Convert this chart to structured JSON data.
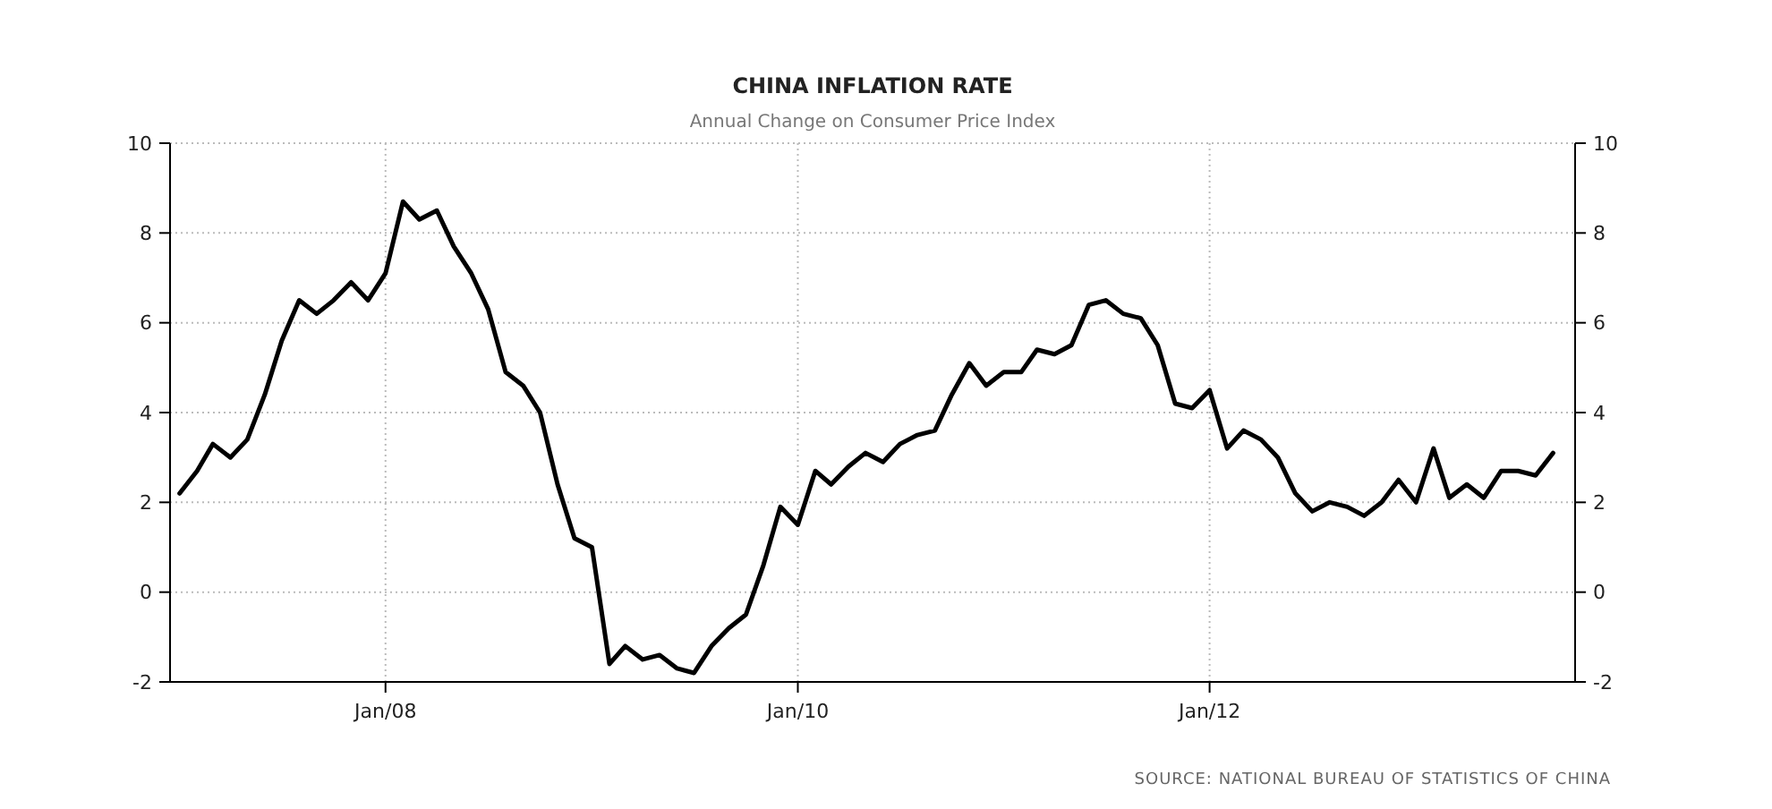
{
  "chart_data": {
    "type": "line",
    "title": "CHINA INFLATION RATE",
    "subtitle": "Annual Change on Consumer Price Index",
    "annotations": [
      "SOURCE: NATIONAL BUREAU OF STATISTICS OF CHINA"
    ],
    "x": [
      "2007-01",
      "2007-02",
      "2007-03",
      "2007-04",
      "2007-05",
      "2007-06",
      "2007-07",
      "2007-08",
      "2007-09",
      "2007-10",
      "2007-11",
      "2007-12",
      "2008-01",
      "2008-02",
      "2008-03",
      "2008-04",
      "2008-05",
      "2008-06",
      "2008-07",
      "2008-08",
      "2008-09",
      "2008-10",
      "2008-11",
      "2008-12",
      "2009-01",
      "2009-02",
      "2009-03",
      "2009-04",
      "2009-05",
      "2009-06",
      "2009-07",
      "2009-08",
      "2009-09",
      "2009-10",
      "2009-11",
      "2009-12",
      "2010-01",
      "2010-02",
      "2010-03",
      "2010-04",
      "2010-05",
      "2010-06",
      "2010-07",
      "2010-08",
      "2010-09",
      "2010-10",
      "2010-11",
      "2010-12",
      "2011-01",
      "2011-02",
      "2011-03",
      "2011-04",
      "2011-05",
      "2011-06",
      "2011-07",
      "2011-08",
      "2011-09",
      "2011-10",
      "2011-11",
      "2011-12",
      "2012-01",
      "2012-02",
      "2012-03",
      "2012-04",
      "2012-05",
      "2012-06",
      "2012-07",
      "2012-08",
      "2012-09",
      "2012-10",
      "2012-11",
      "2012-12",
      "2013-01",
      "2013-02",
      "2013-03",
      "2013-04",
      "2013-05",
      "2013-06",
      "2013-07",
      "2013-08",
      "2013-09"
    ],
    "series": [
      {
        "color": "#000000",
        "values": [
          2.2,
          2.7,
          3.3,
          3.0,
          3.4,
          4.4,
          5.6,
          6.5,
          6.2,
          6.5,
          6.9,
          6.5,
          7.1,
          8.7,
          8.3,
          8.5,
          7.7,
          7.1,
          6.3,
          4.9,
          4.6,
          4.0,
          2.4,
          1.2,
          1.0,
          -1.6,
          -1.2,
          -1.5,
          -1.4,
          -1.7,
          -1.8,
          -1.2,
          -0.8,
          -0.5,
          0.6,
          1.9,
          1.5,
          2.7,
          2.4,
          2.8,
          3.1,
          2.9,
          3.3,
          3.5,
          3.6,
          4.4,
          5.1,
          4.6,
          4.9,
          4.9,
          5.4,
          5.3,
          5.5,
          6.4,
          6.5,
          6.2,
          6.1,
          5.5,
          4.2,
          4.1,
          4.5,
          3.2,
          3.6,
          3.4,
          3.0,
          2.2,
          1.8,
          2.0,
          1.9,
          1.7,
          2.0,
          2.5,
          2.0,
          3.2,
          2.1,
          2.4,
          2.1,
          2.7,
          2.7,
          2.6,
          3.1
        ]
      }
    ],
    "xlim": [
      "2006-12-15",
      "2013-10-10"
    ],
    "xticks": [
      {
        "value": "2008-01",
        "label": "Jan/08"
      },
      {
        "value": "2010-01",
        "label": "Jan/10"
      },
      {
        "value": "2012-01",
        "label": "Jan/12"
      }
    ],
    "ylim": [
      -2,
      10
    ],
    "yticks": [
      -2,
      0,
      2,
      4,
      6,
      8,
      10
    ],
    "y2lim": [
      -2,
      10
    ],
    "y2ticks": [
      -2,
      0,
      2,
      4,
      6,
      8,
      10
    ],
    "grid": true,
    "marker": "none",
    "line_style": "solid"
  }
}
